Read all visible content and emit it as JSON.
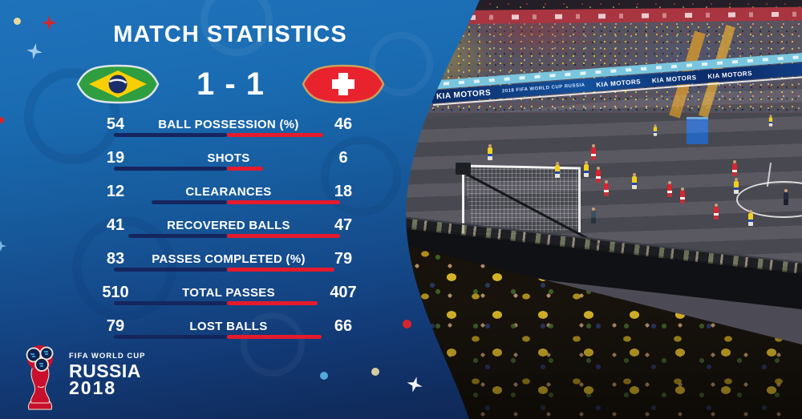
{
  "header": {
    "title": "MATCH STATISTICS"
  },
  "match": {
    "home_team": "Brazil",
    "away_team": "Switzerland",
    "score": "1 - 1"
  },
  "chart_data": {
    "type": "bar",
    "orientation": "diverging-horizontal",
    "categories": [
      "BALL POSSESSION (%)",
      "SHOTS",
      "CLEARANCES",
      "RECOVERED BALLS",
      "PASSES COMPLETED (%)",
      "TOTAL PASSES",
      "LOST BALLS"
    ],
    "series": [
      {
        "name": "Brazil",
        "values": [
          54,
          19,
          12,
          41,
          83,
          510,
          79
        ],
        "color": "#15265e"
      },
      {
        "name": "Switzerland",
        "values": [
          46,
          6,
          18,
          47,
          79,
          407,
          66
        ],
        "color": "#e51b2d"
      }
    ],
    "title": "MATCH STATISTICS",
    "legend_position": "none",
    "note": "each row's bars extend outward from center, scaled to the row maximum"
  },
  "footer": {
    "event_label": "FIFA WORLD CUP",
    "event_name": "RUSSIA",
    "event_year": "2018",
    "trademark": "™"
  },
  "photo": {
    "ad_text": "KIA MOTORS",
    "board_text": "2018 FIFA WORLD CUP RUSSIA"
  },
  "colors": {
    "panel_top": "#1f73ba",
    "panel_bottom": "#0d2450",
    "home_bar": "#15265e",
    "away_bar": "#e51b2d",
    "accent_red": "#d6252e",
    "accent_lightblue": "#a6cde8"
  }
}
